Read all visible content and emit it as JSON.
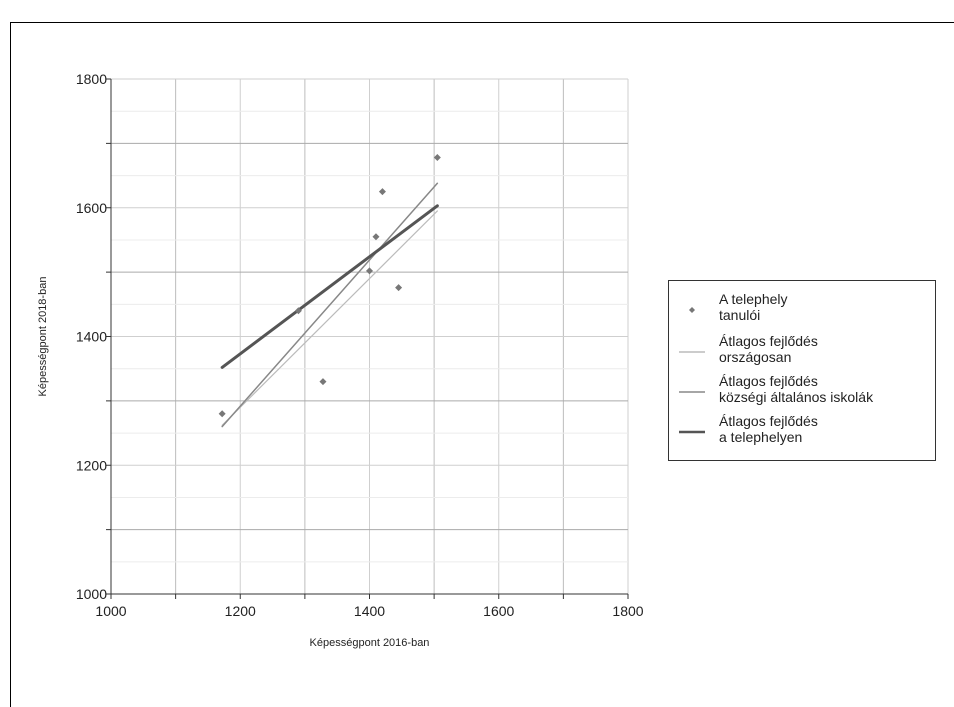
{
  "chart_data": {
    "type": "scatter",
    "xlabel": "Képességpont 2016-ban",
    "ylabel": "Képességpont 2018-ban",
    "xlim": [
      1000,
      1800
    ],
    "ylim": [
      1000,
      1800
    ],
    "x_ticks": [
      "1000",
      "1200",
      "1400",
      "1600",
      "1800"
    ],
    "y_ticks": [
      "1000",
      "1200",
      "1400",
      "1600",
      "1800"
    ],
    "grid": true,
    "legend_position": "right",
    "points": {
      "name": "A telephely\ntanulói",
      "color": "#777777",
      "x": [
        1172,
        1290,
        1328,
        1400,
        1410,
        1420,
        1445,
        1505
      ],
      "y": [
        1280,
        1440,
        1330,
        1502,
        1555,
        1625,
        1476,
        1678
      ]
    },
    "lines": [
      {
        "name": "Átlagos fejlődés\nországosan",
        "color": "#bbbbbb",
        "width": 1.2,
        "x": [
          1172,
          1505
        ],
        "y": [
          1262,
          1595
        ]
      },
      {
        "name": "Átlagos fejlődés\nközségi általános iskolák",
        "color": "#888888",
        "width": 1.5,
        "x": [
          1172,
          1505
        ],
        "y": [
          1260,
          1638
        ]
      },
      {
        "name": "Átlagos fejlődés\na telephelyen",
        "color": "#555555",
        "width": 3,
        "x": [
          1172,
          1505
        ],
        "y": [
          1352,
          1603
        ]
      }
    ]
  }
}
